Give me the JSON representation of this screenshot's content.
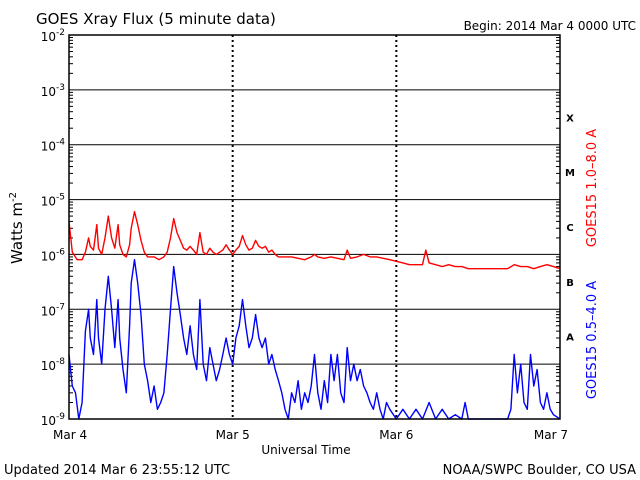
{
  "chart_data": {
    "type": "line",
    "title": "GOES Xray Flux (5 minute data)",
    "begin_label": "Begin:  2014 Mar 4 0000 UTC",
    "xlabel": "Universal Time",
    "ylabel_base": "Watts m",
    "ylabel_exp": "-2",
    "x_ticks": [
      "Mar 4",
      "Mar 5",
      "Mar 6",
      "Mar 7"
    ],
    "x_range_days": [
      0,
      3
    ],
    "y_scale": "log",
    "y_range": [
      1e-09,
      0.01
    ],
    "y_ticks": [
      {
        "base": "10",
        "exp": "-2",
        "value": 0.01
      },
      {
        "base": "10",
        "exp": "-3",
        "value": 0.001
      },
      {
        "base": "10",
        "exp": "-4",
        "value": 0.0001
      },
      {
        "base": "10",
        "exp": "-5",
        "value": 1e-05
      },
      {
        "base": "10",
        "exp": "-6",
        "value": 1e-06
      },
      {
        "base": "10",
        "exp": "-7",
        "value": 1e-07
      },
      {
        "base": "10",
        "exp": "-8",
        "value": 1e-08
      },
      {
        "base": "10",
        "exp": "-9",
        "value": 1e-09
      }
    ],
    "flare_classes": [
      "X",
      "M",
      "C",
      "B",
      "A"
    ],
    "series": [
      {
        "name": "GOES15 1.0–8.0 A",
        "color": "#ff0000",
        "points": [
          [
            0.0,
            4e-06
          ],
          [
            0.02,
            1.1e-06
          ],
          [
            0.05,
            8e-07
          ],
          [
            0.08,
            8e-07
          ],
          [
            0.1,
            1.1e-06
          ],
          [
            0.12,
            2e-06
          ],
          [
            0.13,
            1.4e-06
          ],
          [
            0.15,
            1.2e-06
          ],
          [
            0.17,
            3.5e-06
          ],
          [
            0.18,
            1.3e-06
          ],
          [
            0.2,
            1e-06
          ],
          [
            0.22,
            2e-06
          ],
          [
            0.24,
            5e-06
          ],
          [
            0.26,
            2e-06
          ],
          [
            0.28,
            1.3e-06
          ],
          [
            0.3,
            3.5e-06
          ],
          [
            0.31,
            1.5e-06
          ],
          [
            0.33,
            1e-06
          ],
          [
            0.35,
            9e-07
          ],
          [
            0.37,
            1.5e-06
          ],
          [
            0.38,
            3e-06
          ],
          [
            0.4,
            6e-06
          ],
          [
            0.42,
            3.5e-06
          ],
          [
            0.44,
            1.8e-06
          ],
          [
            0.46,
            1.1e-06
          ],
          [
            0.48,
            9e-07
          ],
          [
            0.52,
            9e-07
          ],
          [
            0.55,
            8e-07
          ],
          [
            0.58,
            9e-07
          ],
          [
            0.6,
            1.1e-06
          ],
          [
            0.62,
            2e-06
          ],
          [
            0.64,
            4.5e-06
          ],
          [
            0.66,
            2.5e-06
          ],
          [
            0.68,
            1.8e-06
          ],
          [
            0.7,
            1.3e-06
          ],
          [
            0.72,
            1.2e-06
          ],
          [
            0.74,
            1.4e-06
          ],
          [
            0.76,
            1.2e-06
          ],
          [
            0.78,
            1e-06
          ],
          [
            0.8,
            2.5e-06
          ],
          [
            0.82,
            1.1e-06
          ],
          [
            0.84,
            1e-06
          ],
          [
            0.86,
            1.3e-06
          ],
          [
            0.88,
            1.1e-06
          ],
          [
            0.9,
            1e-06
          ],
          [
            0.92,
            1.1e-06
          ],
          [
            0.94,
            1.2e-06
          ],
          [
            0.96,
            1.5e-06
          ],
          [
            0.98,
            1.2e-06
          ],
          [
            1.0,
            1e-06
          ],
          [
            1.02,
            1.2e-06
          ],
          [
            1.04,
            1.4e-06
          ],
          [
            1.06,
            2.2e-06
          ],
          [
            1.08,
            1.5e-06
          ],
          [
            1.1,
            1.2e-06
          ],
          [
            1.12,
            1.3e-06
          ],
          [
            1.14,
            1.8e-06
          ],
          [
            1.16,
            1.4e-06
          ],
          [
            1.18,
            1.3e-06
          ],
          [
            1.2,
            1.4e-06
          ],
          [
            1.22,
            1.1e-06
          ],
          [
            1.24,
            1.2e-06
          ],
          [
            1.26,
            1e-06
          ],
          [
            1.28,
            9e-07
          ],
          [
            1.32,
            9e-07
          ],
          [
            1.36,
            9e-07
          ],
          [
            1.4,
            8.5e-07
          ],
          [
            1.44,
            8e-07
          ],
          [
            1.48,
            9e-07
          ],
          [
            1.5,
            1e-06
          ],
          [
            1.52,
            9e-07
          ],
          [
            1.56,
            8.5e-07
          ],
          [
            1.6,
            9e-07
          ],
          [
            1.64,
            8.5e-07
          ],
          [
            1.68,
            8e-07
          ],
          [
            1.7,
            1.2e-06
          ],
          [
            1.72,
            8.5e-07
          ],
          [
            1.76,
            9e-07
          ],
          [
            1.8,
            1e-06
          ],
          [
            1.84,
            9e-07
          ],
          [
            1.88,
            9e-07
          ],
          [
            1.92,
            8.5e-07
          ],
          [
            1.96,
            8e-07
          ],
          [
            2.0,
            7.5e-07
          ],
          [
            2.04,
            7e-07
          ],
          [
            2.08,
            6.5e-07
          ],
          [
            2.12,
            6.5e-07
          ],
          [
            2.16,
            6.5e-07
          ],
          [
            2.18,
            1.2e-06
          ],
          [
            2.2,
            7e-07
          ],
          [
            2.24,
            6.5e-07
          ],
          [
            2.28,
            6e-07
          ],
          [
            2.32,
            6.5e-07
          ],
          [
            2.36,
            6e-07
          ],
          [
            2.4,
            6e-07
          ],
          [
            2.44,
            5.5e-07
          ],
          [
            2.48,
            5.5e-07
          ],
          [
            2.52,
            5.5e-07
          ],
          [
            2.56,
            5.5e-07
          ],
          [
            2.6,
            5.5e-07
          ],
          [
            2.64,
            5.5e-07
          ],
          [
            2.68,
            5.5e-07
          ],
          [
            2.72,
            6.5e-07
          ],
          [
            2.76,
            6e-07
          ],
          [
            2.8,
            6e-07
          ],
          [
            2.84,
            5.5e-07
          ],
          [
            2.88,
            6e-07
          ],
          [
            2.92,
            6.5e-07
          ],
          [
            2.96,
            6e-07
          ],
          [
            3.0,
            5.5e-07
          ]
        ]
      },
      {
        "name": "GOES15 0.5–4.0 A",
        "color": "#0000ff",
        "points": [
          [
            0.0,
            1.5e-08
          ],
          [
            0.02,
            4e-09
          ],
          [
            0.04,
            3e-09
          ],
          [
            0.06,
            1e-09
          ],
          [
            0.08,
            2e-09
          ],
          [
            0.1,
            4e-08
          ],
          [
            0.12,
            1e-07
          ],
          [
            0.13,
            3e-08
          ],
          [
            0.15,
            1.5e-08
          ],
          [
            0.17,
            1.5e-07
          ],
          [
            0.18,
            3e-08
          ],
          [
            0.2,
            1e-08
          ],
          [
            0.22,
            1e-07
          ],
          [
            0.24,
            4e-07
          ],
          [
            0.26,
            1e-07
          ],
          [
            0.28,
            2e-08
          ],
          [
            0.3,
            1.5e-07
          ],
          [
            0.31,
            3e-08
          ],
          [
            0.33,
            8e-09
          ],
          [
            0.35,
            3e-09
          ],
          [
            0.37,
            5e-08
          ],
          [
            0.38,
            3e-07
          ],
          [
            0.4,
            8e-07
          ],
          [
            0.42,
            3e-07
          ],
          [
            0.44,
            8e-08
          ],
          [
            0.46,
            1e-08
          ],
          [
            0.48,
            5e-09
          ],
          [
            0.5,
            2e-09
          ],
          [
            0.52,
            4e-09
          ],
          [
            0.54,
            1.5e-09
          ],
          [
            0.56,
            2e-09
          ],
          [
            0.58,
            3e-09
          ],
          [
            0.6,
            1.5e-08
          ],
          [
            0.62,
            1e-07
          ],
          [
            0.64,
            6e-07
          ],
          [
            0.66,
            2e-07
          ],
          [
            0.68,
            8e-08
          ],
          [
            0.7,
            3e-08
          ],
          [
            0.72,
            1.5e-08
          ],
          [
            0.74,
            5e-08
          ],
          [
            0.76,
            1.5e-08
          ],
          [
            0.78,
            8e-09
          ],
          [
            0.8,
            1.5e-07
          ],
          [
            0.82,
            1e-08
          ],
          [
            0.84,
            5e-09
          ],
          [
            0.86,
            2e-08
          ],
          [
            0.88,
            1e-08
          ],
          [
            0.9,
            5e-09
          ],
          [
            0.92,
            8e-09
          ],
          [
            0.94,
            1.5e-08
          ],
          [
            0.96,
            3e-08
          ],
          [
            0.98,
            1.5e-08
          ],
          [
            1.0,
            1e-08
          ],
          [
            1.02,
            3e-08
          ],
          [
            1.04,
            5e-08
          ],
          [
            1.06,
            1.5e-07
          ],
          [
            1.08,
            5e-08
          ],
          [
            1.1,
            2e-08
          ],
          [
            1.12,
            3e-08
          ],
          [
            1.14,
            8e-08
          ],
          [
            1.16,
            3e-08
          ],
          [
            1.18,
            2e-08
          ],
          [
            1.2,
            3e-08
          ],
          [
            1.22,
            1e-08
          ],
          [
            1.24,
            1.5e-08
          ],
          [
            1.26,
            8e-09
          ],
          [
            1.28,
            5e-09
          ],
          [
            1.3,
            3e-09
          ],
          [
            1.32,
            1.5e-09
          ],
          [
            1.34,
            1e-09
          ],
          [
            1.36,
            3e-09
          ],
          [
            1.38,
            2e-09
          ],
          [
            1.4,
            5e-09
          ],
          [
            1.42,
            1.5e-09
          ],
          [
            1.44,
            3e-09
          ],
          [
            1.46,
            2e-09
          ],
          [
            1.48,
            4e-09
          ],
          [
            1.5,
            1.5e-08
          ],
          [
            1.52,
            3e-09
          ],
          [
            1.54,
            1.5e-09
          ],
          [
            1.56,
            5e-09
          ],
          [
            1.58,
            2e-09
          ],
          [
            1.6,
            1.5e-08
          ],
          [
            1.62,
            5e-09
          ],
          [
            1.64,
            1.5e-08
          ],
          [
            1.66,
            3e-09
          ],
          [
            1.68,
            2e-09
          ],
          [
            1.7,
            2e-08
          ],
          [
            1.72,
            5e-09
          ],
          [
            1.74,
            1e-08
          ],
          [
            1.76,
            5e-09
          ],
          [
            1.78,
            8e-09
          ],
          [
            1.8,
            4e-09
          ],
          [
            1.82,
            3e-09
          ],
          [
            1.84,
            2e-09
          ],
          [
            1.86,
            1.5e-09
          ],
          [
            1.88,
            3e-09
          ],
          [
            1.9,
            1.5e-09
          ],
          [
            1.92,
            1e-09
          ],
          [
            1.94,
            2e-09
          ],
          [
            1.96,
            1.5e-09
          ],
          [
            2.0,
            1e-09
          ],
          [
            2.04,
            1.5e-09
          ],
          [
            2.08,
            1e-09
          ],
          [
            2.12,
            1.5e-09
          ],
          [
            2.16,
            1e-09
          ],
          [
            2.2,
            2e-09
          ],
          [
            2.24,
            1e-09
          ],
          [
            2.28,
            1.5e-09
          ],
          [
            2.32,
            1e-09
          ],
          [
            2.36,
            1.2e-09
          ],
          [
            2.4,
            1e-09
          ],
          [
            2.42,
            2e-09
          ],
          [
            2.44,
            1e-09
          ],
          [
            2.48,
            1e-09
          ],
          [
            2.52,
            1e-09
          ],
          [
            2.56,
            1e-09
          ],
          [
            2.6,
            1e-09
          ],
          [
            2.64,
            1e-09
          ],
          [
            2.68,
            1e-09
          ],
          [
            2.7,
            1.5e-09
          ],
          [
            2.72,
            1.5e-08
          ],
          [
            2.74,
            3e-09
          ],
          [
            2.76,
            1e-08
          ],
          [
            2.78,
            2e-09
          ],
          [
            2.8,
            1.5e-09
          ],
          [
            2.82,
            1.5e-08
          ],
          [
            2.84,
            4e-09
          ],
          [
            2.86,
            8e-09
          ],
          [
            2.88,
            2e-09
          ],
          [
            2.9,
            1.5e-09
          ],
          [
            2.92,
            3e-09
          ],
          [
            2.94,
            1.5e-09
          ],
          [
            2.96,
            1.2e-09
          ],
          [
            3.0,
            1e-09
          ]
        ]
      }
    ]
  },
  "footer": {
    "updated": "Updated 2014 Mar  6 23:55:12 UTC",
    "credit": "NOAA/SWPC Boulder, CO USA"
  }
}
